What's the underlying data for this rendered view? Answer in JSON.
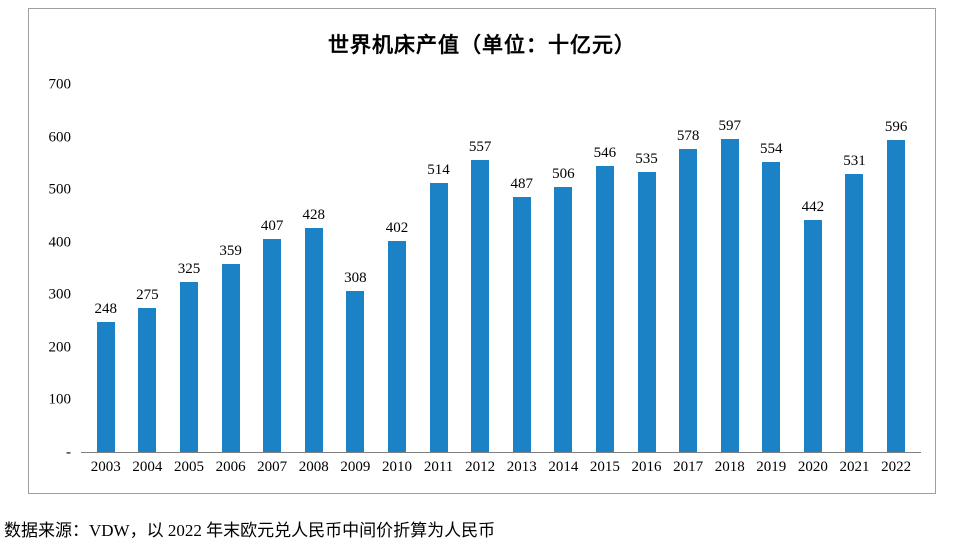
{
  "chart_data": {
    "type": "bar",
    "title": "世界机床产值（单位：十亿元）",
    "categories": [
      "2003",
      "2004",
      "2005",
      "2006",
      "2007",
      "2008",
      "2009",
      "2010",
      "2011",
      "2012",
      "2013",
      "2014",
      "2015",
      "2016",
      "2017",
      "2018",
      "2019",
      "2020",
      "2021",
      "2022"
    ],
    "values": [
      248,
      275,
      325,
      359,
      407,
      428,
      308,
      402,
      514,
      557,
      487,
      506,
      546,
      535,
      578,
      597,
      554,
      442,
      531,
      596
    ],
    "ylim": [
      0,
      700
    ],
    "ytick_values": [
      700,
      600,
      500,
      400,
      300,
      200,
      100,
      0
    ],
    "yticks": [
      "700",
      "600",
      "500",
      "400",
      "300",
      "200",
      "100",
      "-"
    ],
    "bar_color": "#1b82c6",
    "grid": false,
    "legend": null,
    "xlabel": "",
    "ylabel": ""
  },
  "source_note": "数据来源：VDW，以 2022 年末欧元兑人民币中间价折算为人民币"
}
